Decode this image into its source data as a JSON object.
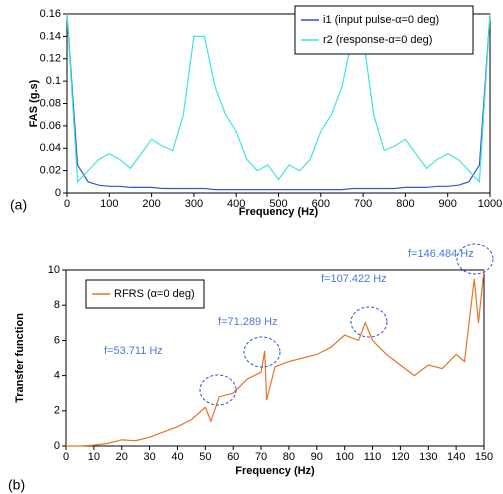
{
  "chart_data": [
    {
      "type": "line",
      "label": "(a)",
      "x_label": "Frequency (Hz)",
      "y_label": "FAS (g.s)",
      "x": [
        0,
        25,
        50,
        75,
        100,
        125,
        150,
        175,
        200,
        225,
        250,
        275,
        300,
        325,
        350,
        375,
        400,
        425,
        450,
        475,
        500,
        525,
        550,
        575,
        600,
        625,
        650,
        675,
        700,
        725,
        750,
        775,
        800,
        825,
        850,
        875,
        900,
        925,
        950,
        975,
        1000
      ],
      "series": [
        {
          "name": "i1 (input pulse-α=0 deg)",
          "color": "#2f55d4",
          "values": [
            0.16,
            0.025,
            0.01,
            0.007,
            0.006,
            0.006,
            0.005,
            0.005,
            0.005,
            0.004,
            0.004,
            0.004,
            0.004,
            0.004,
            0.003,
            0.003,
            0.003,
            0.003,
            0.003,
            0.003,
            0.003,
            0.003,
            0.003,
            0.003,
            0.003,
            0.003,
            0.003,
            0.004,
            0.004,
            0.004,
            0.004,
            0.004,
            0.005,
            0.005,
            0.005,
            0.006,
            0.006,
            0.007,
            0.01,
            0.025,
            0.16
          ]
        },
        {
          "name": "r2 (response-α=0 deg)",
          "color": "#3fe3e3",
          "values": [
            0.16,
            0.01,
            0.02,
            0.03,
            0.035,
            0.03,
            0.022,
            0.035,
            0.048,
            0.042,
            0.038,
            0.07,
            0.14,
            0.14,
            0.095,
            0.07,
            0.055,
            0.03,
            0.02,
            0.025,
            0.012,
            0.025,
            0.02,
            0.03,
            0.055,
            0.07,
            0.095,
            0.14,
            0.14,
            0.07,
            0.038,
            0.042,
            0.048,
            0.035,
            0.022,
            0.03,
            0.035,
            0.03,
            0.02,
            0.01,
            0.16
          ]
        }
      ],
      "xlim": [
        0,
        1000
      ],
      "xticks": [
        0,
        100,
        200,
        300,
        400,
        500,
        600,
        700,
        800,
        900,
        1000
      ],
      "ylim": [
        0,
        0.16
      ],
      "yticks": [
        0,
        0.02,
        0.04,
        0.06,
        0.08,
        0.1,
        0.12,
        0.14,
        0.16
      ],
      "legend": "upper right"
    },
    {
      "type": "line",
      "label": "(b)",
      "x_label": "Frequency (Hz)",
      "y_label": "Transfer function",
      "x": [
        0,
        5,
        10,
        15,
        20,
        25,
        30,
        35,
        40,
        45,
        50,
        52,
        55,
        60,
        65,
        70,
        71.3,
        72,
        75,
        80,
        85,
        90,
        95,
        100,
        105,
        107.4,
        110,
        115,
        120,
        125,
        130,
        135,
        140,
        143,
        146.5,
        148,
        150
      ],
      "series": [
        {
          "name": "RFRS (α=0 deg)",
          "color": "#e8722a",
          "values": [
            0,
            0,
            0.05,
            0.15,
            0.35,
            0.3,
            0.5,
            0.8,
            1.1,
            1.5,
            2.2,
            1.4,
            2.8,
            3.0,
            3.8,
            4.2,
            5.4,
            2.6,
            4.5,
            4.8,
            5.0,
            5.2,
            5.6,
            6.3,
            6.0,
            7.0,
            6.0,
            5.2,
            4.6,
            4.0,
            4.6,
            4.4,
            5.2,
            4.8,
            9.5,
            7.0,
            10
          ]
        }
      ],
      "xlim": [
        0,
        150
      ],
      "xticks": [
        0,
        10,
        20,
        30,
        40,
        50,
        60,
        70,
        80,
        90,
        100,
        110,
        120,
        130,
        140,
        150
      ],
      "ylim": [
        0,
        10
      ],
      "yticks": [
        0,
        2,
        4,
        6,
        8,
        10
      ],
      "legend": "upper left",
      "annotations": [
        "f=53.711 Hz",
        "f=71.289 Hz",
        "f=107.422 Hz",
        "f=146.484 Hz"
      ]
    }
  ]
}
